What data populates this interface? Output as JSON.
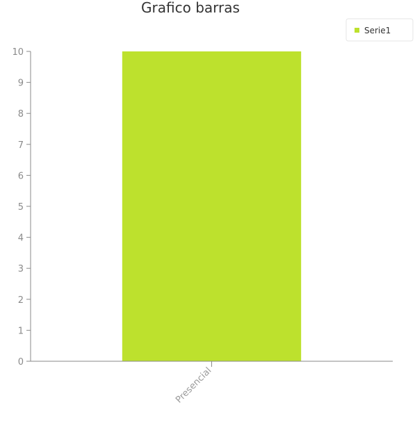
{
  "chart_data": {
    "type": "bar",
    "title": "Grafico barras",
    "categories": [
      "Presencial"
    ],
    "series": [
      {
        "name": "Serie1",
        "values": [
          10
        ],
        "color": "#bde12d"
      }
    ],
    "ylim": [
      0,
      10
    ],
    "yticks": [
      0,
      1,
      2,
      3,
      4,
      5,
      6,
      7,
      8,
      9,
      10
    ],
    "grid": false,
    "legend": "top-right",
    "axis_color": "#8a8a8a"
  }
}
